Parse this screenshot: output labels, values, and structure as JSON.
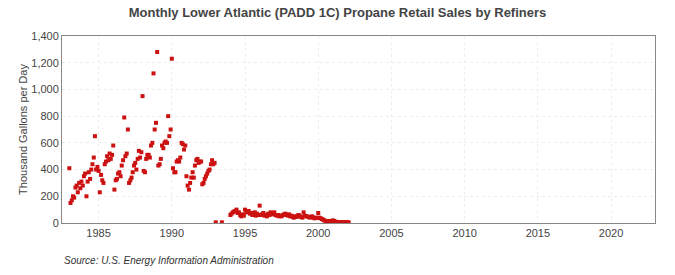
{
  "chart_data": {
    "type": "scatter",
    "title": "Monthly Lower Atlantic (PADD 1C) Propane Retail Sales by Refiners",
    "ylabel": "Thousand Gallons per Day",
    "source": "Source: U.S. Energy Information Administration",
    "color": "#cc1111",
    "marker": "square",
    "grid": true,
    "xlim": [
      1982.5,
      2023
    ],
    "ylim": [
      0,
      1400
    ],
    "xticks": [
      1985,
      1990,
      1995,
      2000,
      2005,
      2010,
      2015,
      2020
    ],
    "yticks": [
      0,
      200,
      400,
      600,
      800,
      {
        "value": 1000,
        "label": "1,000"
      },
      {
        "value": 1200,
        "label": "1,200"
      },
      {
        "value": 1400,
        "label": "1,400"
      }
    ],
    "x": [
      1983.0,
      1983.08,
      1983.17,
      1983.25,
      1983.33,
      1983.42,
      1983.5,
      1983.58,
      1983.67,
      1983.75,
      1983.83,
      1983.92,
      1984.0,
      1984.08,
      1984.17,
      1984.25,
      1984.33,
      1984.42,
      1984.5,
      1984.58,
      1984.67,
      1984.75,
      1984.83,
      1984.92,
      1985.0,
      1985.08,
      1985.17,
      1985.25,
      1985.33,
      1985.42,
      1985.5,
      1985.58,
      1985.67,
      1985.75,
      1985.83,
      1985.92,
      1986.0,
      1986.08,
      1986.17,
      1986.25,
      1986.33,
      1986.42,
      1986.5,
      1986.58,
      1986.67,
      1986.75,
      1986.83,
      1986.92,
      1987.0,
      1987.08,
      1987.17,
      1987.25,
      1987.33,
      1987.42,
      1987.5,
      1987.58,
      1987.67,
      1987.75,
      1987.83,
      1987.92,
      1988.0,
      1988.08,
      1988.17,
      1988.25,
      1988.33,
      1988.42,
      1988.5,
      1988.58,
      1988.67,
      1988.75,
      1988.83,
      1988.92,
      1989.0,
      1989.08,
      1989.17,
      1989.25,
      1989.33,
      1989.42,
      1989.5,
      1989.58,
      1989.67,
      1989.75,
      1989.83,
      1989.92,
      1990.0,
      1990.08,
      1990.17,
      1990.25,
      1990.33,
      1990.42,
      1990.5,
      1990.58,
      1990.67,
      1990.75,
      1990.83,
      1990.92,
      1991.0,
      1991.08,
      1991.17,
      1991.25,
      1991.33,
      1991.42,
      1991.5,
      1991.58,
      1991.67,
      1991.75,
      1991.83,
      1991.92,
      1992.0,
      1992.08,
      1992.17,
      1992.25,
      1992.33,
      1992.42,
      1992.5,
      1992.58,
      1992.67,
      1992.75,
      1992.83,
      1992.92,
      1993.0,
      1993.42,
      1994.0,
      1994.08,
      1994.17,
      1994.25,
      1994.33,
      1994.42,
      1994.5,
      1994.58,
      1994.67,
      1994.75,
      1994.83,
      1994.92,
      1995.0,
      1995.08,
      1995.17,
      1995.25,
      1995.33,
      1995.42,
      1995.5,
      1995.58,
      1995.67,
      1995.75,
      1995.83,
      1995.92,
      1996.0,
      1996.08,
      1996.17,
      1996.25,
      1996.33,
      1996.42,
      1996.5,
      1996.58,
      1996.67,
      1996.75,
      1996.83,
      1996.92,
      1997.0,
      1997.08,
      1997.17,
      1997.25,
      1997.33,
      1997.42,
      1997.5,
      1997.58,
      1997.67,
      1997.75,
      1997.83,
      1997.92,
      1998.0,
      1998.08,
      1998.17,
      1998.25,
      1998.33,
      1998.42,
      1998.5,
      1998.58,
      1998.67,
      1998.75,
      1998.83,
      1998.92,
      1999.0,
      1999.08,
      1999.17,
      1999.25,
      1999.33,
      1999.42,
      1999.5,
      1999.58,
      1999.67,
      1999.75,
      1999.83,
      1999.92,
      2000.0,
      2000.08,
      2000.17,
      2000.25,
      2000.33,
      2000.42,
      2000.5,
      2000.58,
      2000.67,
      2000.75,
      2000.83,
      2000.92,
      2001.0,
      2001.08,
      2001.17,
      2001.25,
      2001.33,
      2001.42,
      2001.5,
      2001.58,
      2001.67,
      2001.75,
      2001.83,
      2001.92,
      2002.0,
      2002.08
    ],
    "values": [
      410,
      150,
      170,
      200,
      190,
      265,
      280,
      230,
      300,
      260,
      310,
      280,
      350,
      370,
      200,
      310,
      380,
      330,
      400,
      440,
      490,
      650,
      400,
      420,
      390,
      230,
      360,
      320,
      300,
      440,
      460,
      500,
      470,
      520,
      480,
      510,
      580,
      250,
      320,
      330,
      370,
      380,
      350,
      430,
      470,
      790,
      500,
      520,
      700,
      300,
      320,
      340,
      380,
      430,
      450,
      400,
      480,
      540,
      490,
      530,
      950,
      390,
      380,
      480,
      510,
      510,
      490,
      580,
      600,
      1120,
      700,
      750,
      1280,
      430,
      440,
      480,
      580,
      560,
      600,
      610,
      600,
      800,
      650,
      700,
      1230,
      410,
      380,
      380,
      460,
      470,
      460,
      490,
      600,
      590,
      550,
      580,
      350,
      280,
      250,
      300,
      340,
      380,
      340,
      430,
      470,
      480,
      450,
      460,
      460,
      290,
      300,
      330,
      350,
      370,
      390,
      400,
      440,
      470,
      440,
      450,
      5,
      5,
      60,
      70,
      80,
      85,
      90,
      100,
      75,
      80,
      60,
      50,
      65,
      55,
      100,
      80,
      85,
      90,
      70,
      75,
      60,
      65,
      80,
      55,
      70,
      60,
      130,
      60,
      65,
      75,
      55,
      60,
      50,
      70,
      60,
      80,
      65,
      70,
      80,
      60,
      55,
      60,
      50,
      55,
      50,
      60,
      65,
      70,
      60,
      55,
      65,
      50,
      55,
      45,
      40,
      50,
      45,
      55,
      60,
      50,
      45,
      40,
      80,
      55,
      50,
      50,
      45,
      40,
      45,
      50,
      40,
      35,
      40,
      38,
      75,
      40,
      35,
      30,
      25,
      20,
      15,
      10,
      10,
      15,
      12,
      10,
      20,
      15,
      10,
      8,
      5,
      5,
      5,
      5,
      5,
      5,
      5,
      5,
      5,
      5
    ]
  }
}
